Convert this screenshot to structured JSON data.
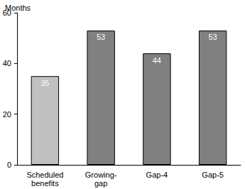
{
  "chart_data": {
    "type": "bar",
    "y_label": "Months",
    "categories": [
      "Scheduled\nbenefits",
      "Growing-\ngap",
      "Gap-4",
      "Gap-5"
    ],
    "values": [
      35,
      53,
      44,
      53
    ],
    "colors": [
      "#c0c0c0",
      "#808080",
      "#808080",
      "#808080"
    ],
    "ylim": [
      0,
      60
    ],
    "yticks": [
      0,
      20,
      40,
      60
    ],
    "grid": false,
    "data_labels": true
  }
}
